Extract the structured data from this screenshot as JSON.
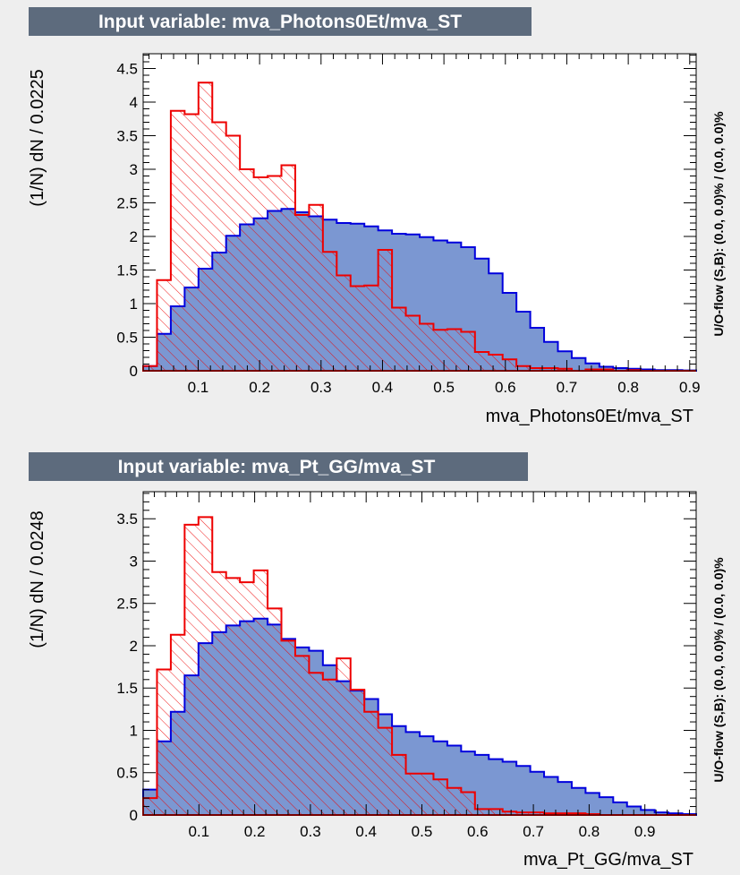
{
  "chart_data": [
    {
      "type": "histogram",
      "title": "Input variable: mva_Photons0Et/mva_ST",
      "xlabel": "mva_Photons0Et/mva_ST",
      "ylabel": "(1/N) dN / 0.0225",
      "side_label": "U/O-flow (S,B): (0.0, 0.0)% / (0.0, 0.0)%",
      "xlim": [
        0.0105,
        0.9105
      ],
      "ylim": [
        0,
        4.72
      ],
      "x_ticks": [
        "0.1",
        "0.2",
        "0.3",
        "0.4",
        "0.5",
        "0.6",
        "0.7",
        "0.8",
        "0.9"
      ],
      "y_ticks": [
        "0",
        "0.5",
        "1",
        "1.5",
        "2",
        "2.5",
        "3",
        "3.5",
        "4",
        "4.5"
      ],
      "colors": {
        "signal_fill": "#7b97d2",
        "signal_line": "#0000dd",
        "background_line": "#ee0000"
      },
      "series": [
        {
          "role": "signal",
          "values": [
            0.07,
            0.55,
            0.96,
            1.24,
            1.52,
            1.76,
            2.01,
            2.18,
            2.27,
            2.38,
            2.41,
            2.36,
            2.3,
            2.25,
            2.2,
            2.19,
            2.15,
            2.09,
            2.04,
            2.03,
            1.99,
            1.94,
            1.91,
            1.84,
            1.67,
            1.45,
            1.16,
            0.88,
            0.64,
            0.43,
            0.29,
            0.19,
            0.11,
            0.06,
            0.04,
            0.03,
            0.02,
            0.01,
            0.01,
            0.005
          ]
        },
        {
          "role": "background",
          "values": [
            0.07,
            1.35,
            3.87,
            3.82,
            4.29,
            3.7,
            3.5,
            3.0,
            2.88,
            2.9,
            3.06,
            2.32,
            2.47,
            1.77,
            1.42,
            1.26,
            1.27,
            1.8,
            0.94,
            0.82,
            0.7,
            0.61,
            0.62,
            0.58,
            0.28,
            0.24,
            0.17,
            0.07,
            0.04,
            0.04,
            0.03,
            0.0,
            0.02,
            0.02,
            0.0,
            0.01,
            0.0,
            0.0,
            0.0,
            0.0
          ]
        }
      ]
    },
    {
      "type": "histogram",
      "title": "Input variable: mva_Pt_GG/mva_ST",
      "xlabel": "mva_Pt_GG/mva_ST",
      "ylabel": "(1/N) dN / 0.0248",
      "side_label": "U/O-flow (S,B): (0.0, 0.0)% / (0.0, 0.0)%",
      "xlim": [
        0.0,
        0.992
      ],
      "ylim": [
        0,
        3.82
      ],
      "x_ticks": [
        "0.1",
        "0.2",
        "0.3",
        "0.4",
        "0.5",
        "0.6",
        "0.7",
        "0.8",
        "0.9"
      ],
      "y_ticks": [
        "0",
        "0.5",
        "1",
        "1.5",
        "2",
        "2.5",
        "3",
        "3.5"
      ],
      "colors": {
        "signal_fill": "#7b97d2",
        "signal_line": "#0000dd",
        "background_line": "#ee0000"
      },
      "series": [
        {
          "role": "signal",
          "values": [
            0.3,
            0.87,
            1.22,
            1.65,
            2.03,
            2.16,
            2.24,
            2.29,
            2.32,
            2.25,
            2.08,
            1.98,
            1.94,
            1.77,
            1.58,
            1.47,
            1.37,
            1.19,
            1.05,
            0.98,
            0.93,
            0.87,
            0.82,
            0.75,
            0.71,
            0.66,
            0.63,
            0.58,
            0.51,
            0.45,
            0.39,
            0.32,
            0.26,
            0.21,
            0.15,
            0.1,
            0.06,
            0.03,
            0.02,
            0.01
          ]
        },
        {
          "role": "background",
          "values": [
            0.2,
            1.72,
            2.13,
            3.43,
            3.52,
            2.87,
            2.8,
            2.75,
            2.89,
            2.44,
            2.06,
            1.88,
            1.68,
            1.6,
            1.85,
            1.48,
            1.22,
            1.03,
            0.71,
            0.49,
            0.49,
            0.42,
            0.32,
            0.27,
            0.07,
            0.07,
            0.04,
            0.03,
            0.03,
            0.02,
            0.02,
            0.02,
            0.01,
            0.0,
            0.0,
            0.0,
            0.0,
            0.0,
            0.0,
            0.0
          ]
        }
      ]
    }
  ]
}
